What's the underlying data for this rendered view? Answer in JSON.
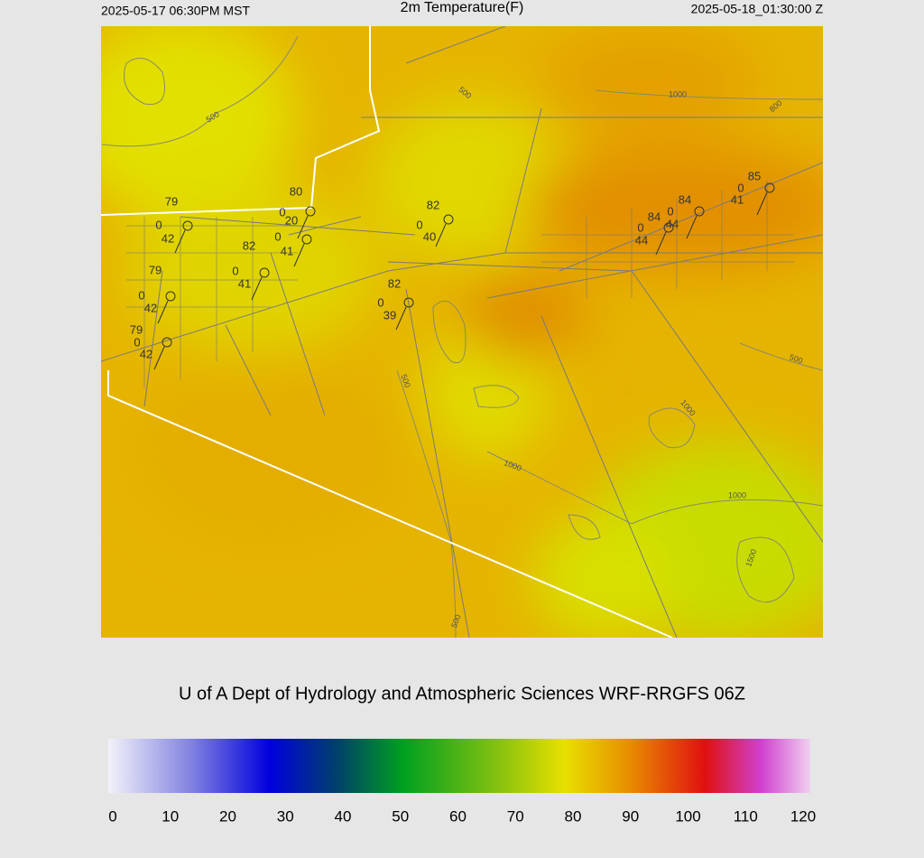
{
  "header": {
    "left": "2025-05-17 06:30PM MST",
    "title": "2m Temperature(F)",
    "right": "2025-05-18_01:30:00 Z"
  },
  "map": {
    "contour_labels": [
      "500",
      "500",
      "500",
      "500",
      "500",
      "1000",
      "1000",
      "1000",
      "1000",
      "800",
      "1500"
    ],
    "stations": [
      {
        "labels": [
          "79",
          "0",
          "42"
        ]
      },
      {
        "labels": [
          "80",
          "0",
          "20"
        ]
      },
      {
        "labels": [
          "0",
          "41"
        ]
      },
      {
        "labels": [
          "82",
          "0",
          "41"
        ]
      },
      {
        "labels": [
          "79",
          "0",
          "42"
        ]
      },
      {
        "labels": [
          "79",
          "0",
          "42"
        ]
      },
      {
        "labels": [
          "82",
          "0",
          "40"
        ]
      },
      {
        "labels": [
          "82",
          "0",
          "39"
        ]
      },
      {
        "labels": [
          "84",
          "0",
          "44"
        ]
      },
      {
        "labels": [
          "84",
          "0",
          "44"
        ]
      },
      {
        "labels": [
          "85",
          "0",
          "41"
        ]
      }
    ]
  },
  "credit": "U of A Dept of Hydrology and Atmospheric Sciences WRF-RRGFS 06Z",
  "colorbar": {
    "ticks": [
      0,
      10,
      20,
      30,
      40,
      50,
      60,
      70,
      80,
      90,
      100,
      110,
      120
    ]
  }
}
